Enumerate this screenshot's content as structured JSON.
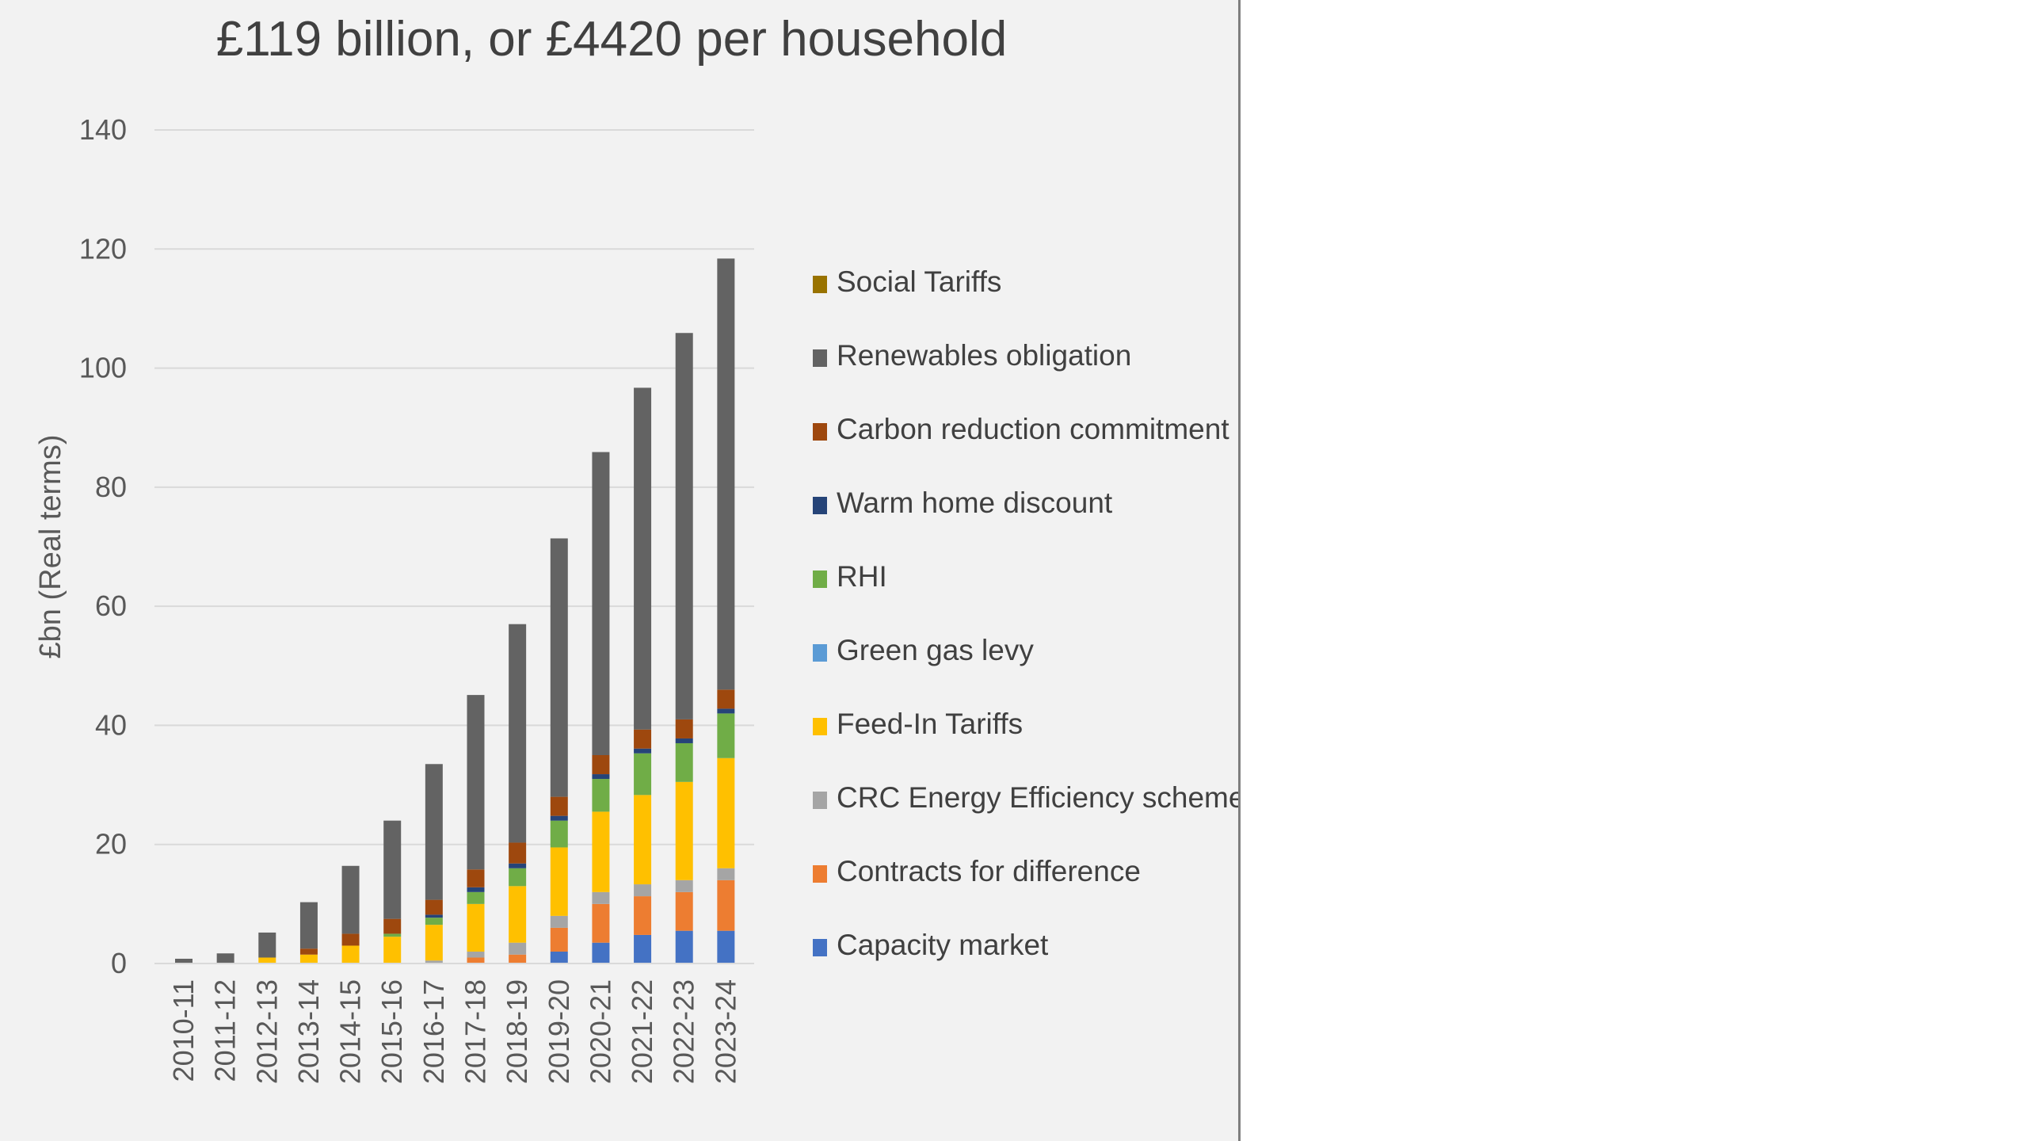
{
  "chart_data": {
    "type": "bar",
    "stacked": true,
    "title": "£119 billion, or £4420 per household",
    "xlabel": "",
    "ylabel": "£bn (Real terms)",
    "ylim": [
      0,
      140
    ],
    "yticks": [
      0,
      20,
      40,
      60,
      80,
      100,
      120,
      140
    ],
    "grid": true,
    "legend_position": "right",
    "categories": [
      "2010-11",
      "2011-12",
      "2012-13",
      "2013-14",
      "2014-15",
      "2015-16",
      "2016-17",
      "2017-18",
      "2018-19",
      "2019-20",
      "2020-21",
      "2021-22",
      "2022-23",
      "2023-24"
    ],
    "series": [
      {
        "name": "Capacity market",
        "color": "#4472c4",
        "values": [
          0,
          0,
          0,
          0,
          0,
          0,
          0,
          0,
          0,
          2,
          3.5,
          4.8,
          5.5,
          5.5
        ]
      },
      {
        "name": "Contracts for difference",
        "color": "#ed7d31",
        "values": [
          0,
          0,
          0,
          0,
          0,
          0,
          0,
          1,
          1.5,
          4,
          6.5,
          6.5,
          6.5,
          8.5
        ]
      },
      {
        "name": "CRC Energy Efficiency scheme",
        "color": "#a5a5a5",
        "values": [
          0,
          0,
          0,
          0,
          0,
          0,
          0.5,
          1,
          2,
          2,
          2,
          2,
          2,
          2
        ]
      },
      {
        "name": "Feed-In Tariffs",
        "color": "#ffc000",
        "values": [
          0,
          0,
          1,
          1.5,
          3,
          4.5,
          6,
          8,
          9.5,
          11.5,
          13.5,
          15,
          16.5,
          18.5
        ]
      },
      {
        "name": "Green gas levy",
        "color": "#5b9bd5",
        "values": [
          0,
          0,
          0,
          0,
          0,
          0,
          0,
          0,
          0,
          0,
          0,
          0,
          0,
          0
        ]
      },
      {
        "name": "RHI",
        "color": "#70ad47",
        "values": [
          0,
          0,
          0,
          0,
          0,
          0.5,
          1.2,
          2,
          3,
          4.5,
          5.5,
          7,
          6.5,
          7.5
        ]
      },
      {
        "name": "Warm home discount",
        "color": "#264478",
        "values": [
          0,
          0,
          0,
          0,
          0,
          0,
          0.5,
          0.8,
          0.8,
          0.8,
          0.8,
          0.8,
          0.8,
          0.8
        ]
      },
      {
        "name": "Carbon reduction commitment",
        "color": "#9e480e",
        "values": [
          0,
          0,
          0,
          1,
          2,
          2.5,
          2.5,
          3,
          3.5,
          3.2,
          3.2,
          3.2,
          3.2,
          3.2
        ]
      },
      {
        "name": "Renewables obligation",
        "color": "#636363",
        "values": [
          0.8,
          1.7,
          4.2,
          7.8,
          11.4,
          16.5,
          22.8,
          29.3,
          36.7,
          43.4,
          50.9,
          57.4,
          64.9,
          72.4
        ]
      },
      {
        "name": "Social Tariffs",
        "color": "#997300",
        "values": [
          0,
          0,
          0,
          0,
          0,
          0,
          0,
          0,
          0,
          0,
          0,
          0,
          0,
          0
        ]
      }
    ]
  }
}
